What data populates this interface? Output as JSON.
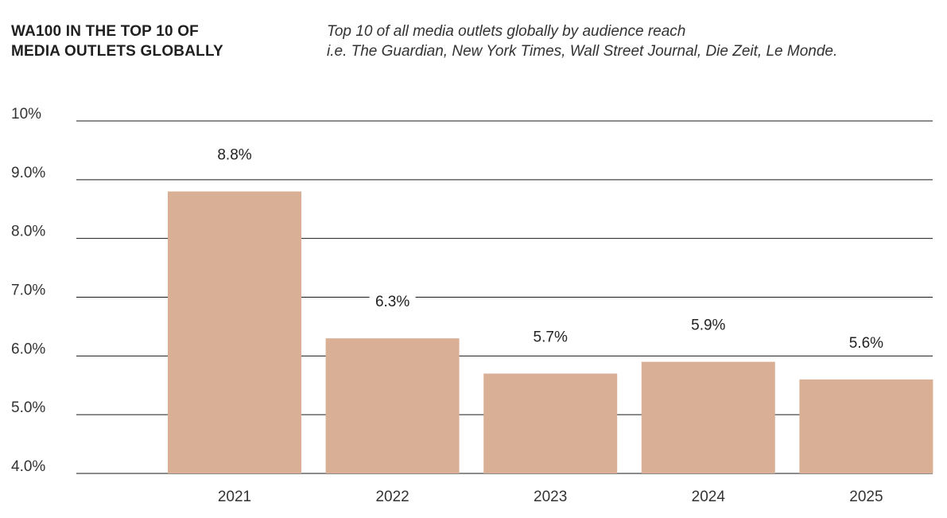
{
  "header": {
    "title": "WA100 IN THE TOP 10 OF\nMEDIA OUTLETS GLOBALLY",
    "subtitle_line1": "Top 10 of all media outlets globally by audience reach",
    "subtitle_line2": "i.e. The Guardian, New York Times, Wall Street Journal, Die Zeit, Le Monde."
  },
  "chart_data": {
    "type": "bar",
    "categories": [
      "2021",
      "2022",
      "2023",
      "2024",
      "2025"
    ],
    "values": [
      8.8,
      6.3,
      5.7,
      5.9,
      5.6
    ],
    "value_labels": [
      "8.8%",
      "6.3%",
      "5.7%",
      "5.9%",
      "5.6%"
    ],
    "ylim": [
      4,
      10
    ],
    "yticks": [
      10,
      9,
      8,
      7,
      6,
      5,
      4
    ],
    "ytick_labels": [
      "10%",
      "9.0%",
      "8.0%",
      "7.0%",
      "6.0%",
      "5.0%",
      "4.0%"
    ],
    "grid": true,
    "legend": "none",
    "bar_color": "#d9b096",
    "grid_color": "#1a1a1a"
  }
}
